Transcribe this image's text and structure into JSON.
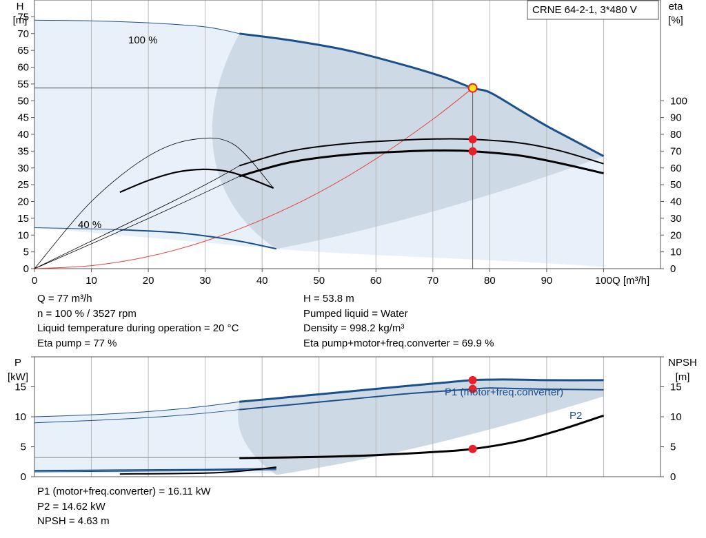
{
  "pump_title": "CRNE 64-2-1, 3*480 V",
  "labels": {
    "curve_100": "100 %",
    "curve_40": "40 %",
    "p1_curve": "P1 (motor+freq.converter)",
    "p2_curve": "P2"
  },
  "info_top": {
    "left": [
      "Q = 77 m³/h",
      "n = 100 % / 3527 rpm",
      "Liquid temperature during operation = 20 °C",
      "Eta pump = 77 %"
    ],
    "right": [
      "H = 53.8 m",
      "Pumped liquid = Water",
      "Density = 998.2 kg/m³",
      "Eta pump+motor+freq.converter = 69.9 %"
    ]
  },
  "info_bottom": [
    "P1 (motor+freq.converter) = 16.11 kW",
    "P2 = 14.62 kW",
    "NPSH = 4.63 m"
  ],
  "colors": {
    "head_curve": "#1a4f8a",
    "eta_curve": "#000000",
    "system_curve": "#e8423b",
    "operating_point": "#e8202a",
    "operating_point_fill": "#ffe21a",
    "region_main": "#cdd9e5",
    "region_light": "#e8f1fa",
    "grid": "#b8b8b8"
  },
  "chart_data": [
    {
      "type": "line",
      "xlabel": "Q [m³/h]",
      "ylabel": "H [m]",
      "y2label": "eta [%]",
      "xlim": [
        0,
        110
      ],
      "ylim": [
        0,
        80
      ],
      "y2lim": [
        0,
        160
      ],
      "xticks": [
        0,
        10,
        20,
        30,
        40,
        50,
        60,
        70,
        80,
        90,
        100
      ],
      "yticks": [
        0,
        5,
        10,
        15,
        20,
        25,
        30,
        35,
        40,
        45,
        50,
        55,
        60,
        65,
        70,
        75
      ],
      "y2ticks": [
        0,
        10,
        20,
        30,
        40,
        50,
        60,
        70,
        80,
        90,
        100
      ],
      "grid": true,
      "series": [
        {
          "name": "H 100 %",
          "axis": "H",
          "x": [
            0,
            10,
            20,
            30,
            36,
            45,
            55,
            65,
            72,
            77,
            80,
            85,
            90,
            95,
            100
          ],
          "values": [
            74,
            73.8,
            73.2,
            72,
            70,
            68,
            65,
            60.6,
            57,
            53.8,
            52.5,
            47.5,
            42.5,
            38,
            33.5
          ]
        },
        {
          "name": "H 40 %",
          "axis": "H",
          "x": [
            0,
            15,
            25,
            35,
            42.5
          ],
          "values": [
            12.2,
            11.6,
            10.7,
            8.5,
            5.9
          ]
        },
        {
          "name": "eta pump",
          "axis": "eta",
          "x": [
            36,
            45,
            55,
            65,
            72,
            77,
            85,
            92,
            100
          ],
          "values": [
            61.3,
            70,
            74.5,
            76.6,
            77.3,
            77,
            75,
            70.5,
            62.5
          ]
        },
        {
          "name": "eta pump+motor+freq.converter",
          "axis": "eta",
          "x": [
            36,
            45,
            55,
            65,
            72,
            77,
            85,
            92,
            100
          ],
          "values": [
            55,
            63.4,
            67.9,
            69.8,
            70.4,
            69.9,
            67.5,
            63,
            56.8
          ]
        },
        {
          "name": "eta pump 40 %",
          "axis": "eta",
          "x": [
            0,
            10,
            20,
            28,
            35,
            42
          ],
          "values": [
            0,
            40,
            67,
            77,
            74,
            48
          ]
        },
        {
          "name": "eta total 40 %",
          "axis": "eta",
          "x": [
            15,
            20,
            25,
            30,
            35,
            42
          ],
          "values": [
            45.5,
            52.5,
            57.5,
            59.1,
            57,
            48
          ]
        },
        {
          "name": "system curve",
          "axis": "H",
          "x": [
            0,
            10,
            20,
            30,
            40,
            50,
            60,
            70,
            77
          ],
          "values": [
            0,
            0.9,
            3.6,
            8.2,
            14.6,
            22.7,
            32.7,
            44.5,
            53.8
          ]
        }
      ],
      "operating_point": {
        "Q": 77,
        "H": 53.8,
        "eta_pump": 77,
        "eta_total": 69.9
      }
    },
    {
      "type": "line",
      "ylabel": "P [kW]",
      "y2label": "NPSH [m]",
      "xlim": [
        0,
        110
      ],
      "ylim": [
        0,
        20
      ],
      "yticks": [
        0,
        5,
        10,
        15
      ],
      "y2ticks": [
        0,
        5,
        10,
        15
      ],
      "grid": true,
      "series": [
        {
          "name": "P1",
          "axis": "P",
          "x": [
            36,
            45,
            55,
            65,
            72,
            77,
            80,
            85,
            90,
            100
          ],
          "values": [
            12.5,
            13.3,
            14.2,
            15.1,
            15.7,
            16.11,
            16.2,
            16.2,
            16.1,
            16.1
          ]
        },
        {
          "name": "P2",
          "axis": "P",
          "x": [
            36,
            45,
            55,
            65,
            72,
            77,
            80,
            85,
            90,
            100
          ],
          "values": [
            11.2,
            12,
            12.9,
            13.8,
            14.3,
            14.62,
            14.8,
            14.7,
            14.6,
            14.5
          ]
        },
        {
          "name": "NPSH",
          "axis": "P",
          "x": [
            36,
            50,
            60,
            70,
            77,
            85,
            92,
            100
          ],
          "values": [
            3.1,
            3.3,
            3.6,
            4.1,
            4.63,
            5.9,
            7.7,
            10.2
          ]
        },
        {
          "name": "P1 40 %",
          "axis": "P",
          "x": [
            0,
            15,
            30,
            42.5
          ],
          "values": [
            1.0,
            1.1,
            1.2,
            1.35
          ]
        },
        {
          "name": "P2 40 %",
          "axis": "P",
          "x": [
            0,
            15,
            30,
            42.5
          ],
          "values": [
            0.8,
            0.9,
            1.0,
            1.15
          ]
        },
        {
          "name": "NPSH 40 %",
          "axis": "P",
          "x": [
            15,
            30,
            37,
            42.5
          ],
          "values": [
            0.45,
            0.6,
            1.0,
            1.6
          ]
        }
      ],
      "operating_point": {
        "Q": 77,
        "P1": 16.11,
        "P2": 14.62,
        "NPSH": 4.63
      }
    }
  ]
}
